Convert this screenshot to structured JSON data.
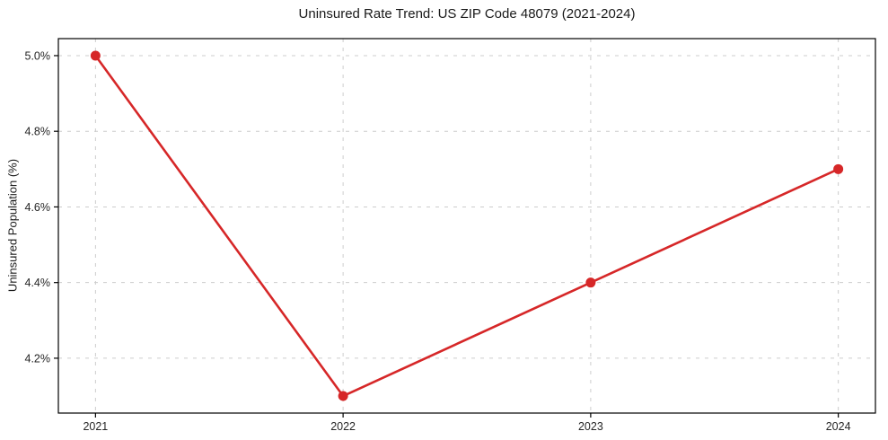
{
  "chart_data": {
    "type": "line",
    "title": "Uninsured Rate Trend: US ZIP Code 48079 (2021-2024)",
    "xlabel": "",
    "ylabel": "Uninsured Population (%)",
    "x": [
      2021,
      2022,
      2023,
      2024
    ],
    "values": [
      5.0,
      4.1,
      4.4,
      4.7
    ],
    "xticks": [
      2021,
      2022,
      2023,
      2024
    ],
    "xtick_labels": [
      "2021",
      "2022",
      "2023",
      "2024"
    ],
    "yticks": [
      4.2,
      4.4,
      4.6,
      4.8,
      5.0
    ],
    "ytick_labels": [
      "4.2%",
      "4.4%",
      "4.6%",
      "4.8%",
      "5.0%"
    ],
    "xlim": [
      2020.85,
      2024.15
    ],
    "ylim": [
      4.055,
      5.045
    ],
    "grid": true,
    "legend": "none",
    "line_color": "#d62728",
    "marker_color": "#d62728",
    "grid_color": "#cccccc",
    "spine_color": "#000000",
    "background_color": "#ffffff"
  }
}
